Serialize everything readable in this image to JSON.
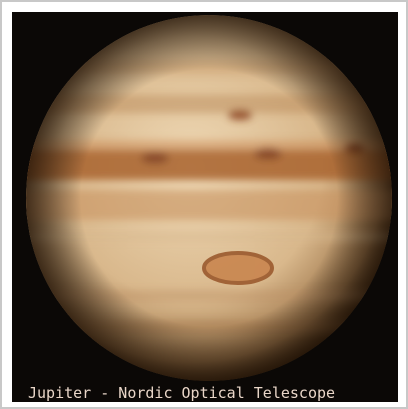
{
  "caption": "Jupiter - Nordic Optical Telescope"
}
